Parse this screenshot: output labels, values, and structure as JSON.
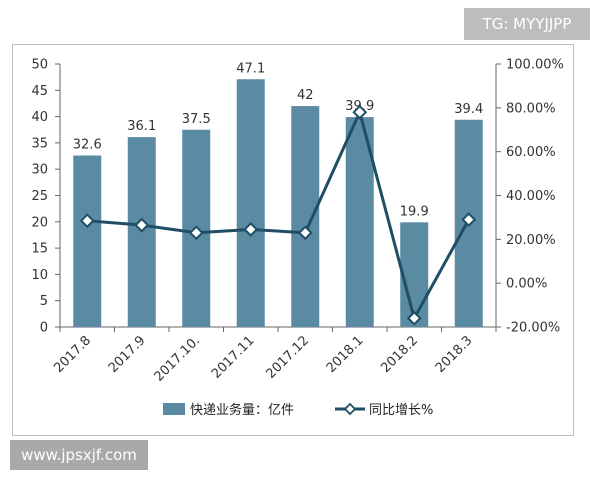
{
  "watermark_top": "TG: MYYJJPP",
  "watermark_bottom": "www.jpsxjf.com",
  "chart_data": {
    "type": "bar",
    "categories": [
      "2017.8",
      "2017.9",
      "2017.10.",
      "2017.11",
      "2017.12",
      "2018.1",
      "2018.2",
      "2018.3"
    ],
    "series": [
      {
        "name": "快递业务量：亿件",
        "type": "bar",
        "axis": "left",
        "color": "#5b8aa3",
        "values": [
          32.6,
          36.1,
          37.5,
          47.1,
          42,
          39.9,
          19.9,
          39.4
        ],
        "labels": [
          "32.6",
          "36.1",
          "37.5",
          "47.1",
          "42",
          "39.9",
          "19.9",
          "39.4"
        ]
      },
      {
        "name": "同比增长%",
        "type": "line",
        "axis": "right",
        "color": "#1f4e66",
        "values": [
          28.5,
          26.5,
          23.0,
          24.5,
          23.0,
          78.0,
          -16.0,
          29.0
        ]
      }
    ],
    "left_axis": {
      "min": 0,
      "max": 50,
      "step": 5,
      "ticks": [
        "0",
        "5",
        "10",
        "15",
        "20",
        "25",
        "30",
        "35",
        "40",
        "45",
        "50"
      ]
    },
    "right_axis": {
      "min": -20,
      "max": 100,
      "step": 20,
      "ticks": [
        "-20.00%",
        "0.00%",
        "20.00%",
        "40.00%",
        "60.00%",
        "80.00%",
        "100.00%"
      ]
    },
    "legend_position": "bottom",
    "grid": false
  }
}
